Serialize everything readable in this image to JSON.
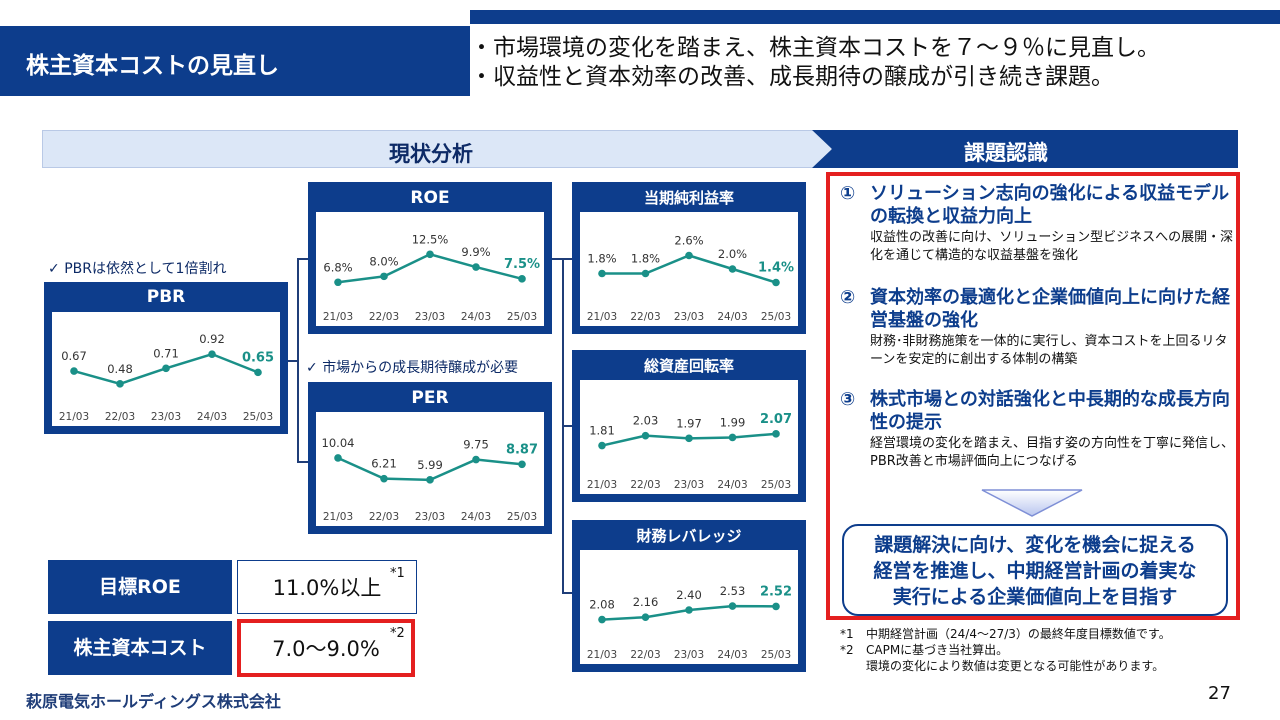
{
  "header": {
    "title": "株主資本コストの見直し",
    "bullets": [
      "・市場環境の変化を踏まえ、株主資本コストを７～９％に見直し。",
      "・収益性と資本効率の改善、成長期待の醸成が引き続き課題。"
    ]
  },
  "bands": {
    "analysis": "現状分析",
    "issues": "課題認識"
  },
  "notes": {
    "pbr": "PBRは依然として1倍割れ",
    "per": "市場からの成長期待醸成が必要",
    "check": "✓"
  },
  "chart_data": [
    {
      "id": "pbr",
      "type": "line",
      "title": "PBR",
      "categories": [
        "21/03",
        "22/03",
        "23/03",
        "24/03",
        "25/03"
      ],
      "values": [
        0.67,
        0.48,
        0.71,
        0.92,
        0.65
      ],
      "labels": [
        "0.67",
        "0.48",
        "0.71",
        "0.92",
        "0.65"
      ],
      "ylim": [
        0.3,
        1.1
      ]
    },
    {
      "id": "roe",
      "type": "line",
      "title": "ROE",
      "categories": [
        "21/03",
        "22/03",
        "23/03",
        "24/03",
        "25/03"
      ],
      "values": [
        6.8,
        8.0,
        12.5,
        9.9,
        7.5
      ],
      "labels": [
        "6.8%",
        "8.0%",
        "12.5%",
        "9.9%",
        "7.5%"
      ],
      "ylim": [
        4,
        15
      ]
    },
    {
      "id": "per",
      "type": "line",
      "title": "PER",
      "categories": [
        "21/03",
        "22/03",
        "23/03",
        "24/03",
        "25/03"
      ],
      "values": [
        10.04,
        6.21,
        5.99,
        9.75,
        8.87
      ],
      "labels": [
        "10.04",
        "6.21",
        "5.99",
        "9.75",
        "8.87"
      ],
      "ylim": [
        3,
        13
      ]
    },
    {
      "id": "npm",
      "type": "line",
      "title": "当期純利益率",
      "categories": [
        "21/03",
        "22/03",
        "23/03",
        "24/03",
        "25/03"
      ],
      "values": [
        1.8,
        1.8,
        2.6,
        2.0,
        1.4
      ],
      "labels": [
        "1.8%",
        "1.8%",
        "2.6%",
        "2.0%",
        "1.4%"
      ],
      "ylim": [
        0.8,
        3.2
      ]
    },
    {
      "id": "tat",
      "type": "line",
      "title": "総資産回転率",
      "categories": [
        "21/03",
        "22/03",
        "23/03",
        "24/03",
        "25/03"
      ],
      "values": [
        1.81,
        2.03,
        1.97,
        1.99,
        2.07
      ],
      "labels": [
        "1.81",
        "2.03",
        "1.97",
        "1.99",
        "2.07"
      ],
      "ylim": [
        1.4,
        2.6
      ]
    },
    {
      "id": "lev",
      "type": "line",
      "title": "財務レバレッジ",
      "categories": [
        "21/03",
        "22/03",
        "23/03",
        "24/03",
        "25/03"
      ],
      "values": [
        2.08,
        2.16,
        2.4,
        2.53,
        2.52
      ],
      "labels": [
        "2.08",
        "2.16",
        "2.40",
        "2.53",
        "2.52"
      ],
      "ylim": [
        1.6,
        3.4
      ]
    }
  ],
  "issues": [
    {
      "num": "①",
      "title": "ソリューション志向の強化による収益モデルの転換と収益力向上",
      "desc": "収益性の改善に向け、ソリューション型ビジネスへの展開・深化を通じて構造的な収益基盤を強化"
    },
    {
      "num": "②",
      "title": "資本効率の最適化と企業価値向上に向けた経営基盤の強化",
      "desc": "財務･非財務施策を一体的に実行し、資本コストを上回るリターンを安定的に創出する体制の構築"
    },
    {
      "num": "③",
      "title": "株式市場との対話強化と中長期的な成長方向性の提示",
      "desc": "経営環境の変化を踏まえ、目指す姿の方向性を丁寧に発信し、PBR改善と市場評価向上につなげる"
    }
  ],
  "goal": {
    "lines": [
      "課題解決に向け、変化を機会に捉える",
      "経営を推進し、中期経営計画の着実な",
      "実行による企業価値向上を目指す"
    ]
  },
  "kpis": [
    {
      "label": "目標ROE",
      "value": "11.0%以上",
      "mark": "*1"
    },
    {
      "label": "株主資本コスト",
      "value": "7.0～9.0%",
      "mark": "*2"
    }
  ],
  "footnotes": [
    {
      "mark": "*1",
      "text": "中期経営計画（24/4～27/3）の最終年度目標数値です。"
    },
    {
      "mark": "*2",
      "text": "CAPMに基づき当社算出。"
    },
    {
      "mark": "",
      "text": "環境の変化により数値は変更となる可能性があります。"
    }
  ],
  "footer": {
    "company": "萩原電気ホールディングス株式会社",
    "page": "27"
  },
  "colors": {
    "navy": "#0d3d8c",
    "teal": "#1a9088",
    "red": "#e41f1f",
    "light": "#dce7f7"
  }
}
